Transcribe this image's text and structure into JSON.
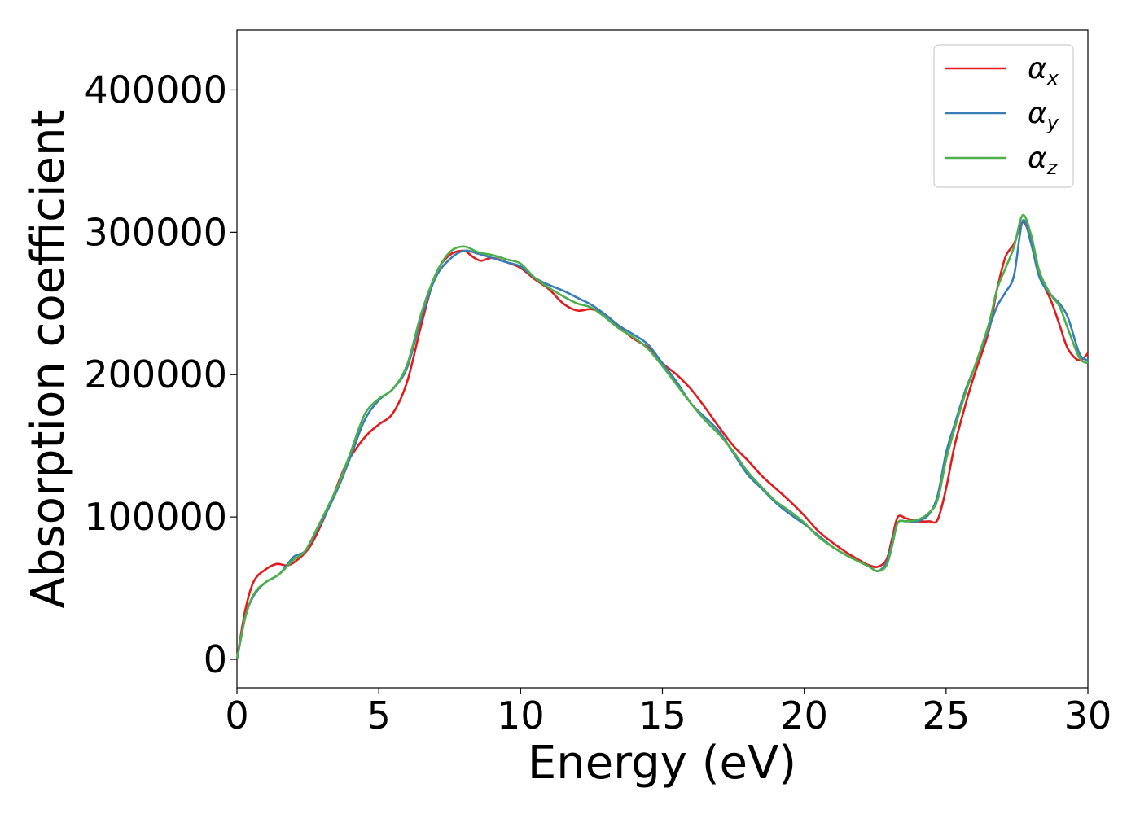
{
  "chart_data": {
    "type": "line",
    "xlabel": "Energy (eV)",
    "ylabel": "Absorption coefficient",
    "xlim": [
      0,
      30
    ],
    "ylim": [
      -20000,
      442000
    ],
    "x_ticks": [
      0,
      5,
      10,
      15,
      20,
      25,
      30
    ],
    "x_tick_labels": [
      "0",
      "5",
      "10",
      "15",
      "20",
      "25",
      "30"
    ],
    "y_ticks": [
      0,
      100000,
      200000,
      300000,
      400000
    ],
    "y_tick_labels": [
      "0",
      "100000",
      "200000",
      "300000",
      "400000"
    ],
    "grid": false,
    "legend_position": "top-right",
    "series": [
      {
        "name": "α",
        "subscript": "x",
        "color": "#e41a1c",
        "points": [
          [
            0,
            0
          ],
          [
            0.3,
            35000
          ],
          [
            0.6,
            55000
          ],
          [
            1,
            63000
          ],
          [
            1.4,
            67000
          ],
          [
            1.8,
            66000
          ],
          [
            2.2,
            71000
          ],
          [
            2.6,
            80000
          ],
          [
            3,
            96000
          ],
          [
            3.4,
            115000
          ],
          [
            3.8,
            135000
          ],
          [
            4.2,
            148000
          ],
          [
            4.6,
            158000
          ],
          [
            5,
            165000
          ],
          [
            5.5,
            173000
          ],
          [
            6,
            195000
          ],
          [
            6.5,
            235000
          ],
          [
            7,
            270000
          ],
          [
            7.5,
            284000
          ],
          [
            8,
            287000
          ],
          [
            8.3,
            283000
          ],
          [
            8.6,
            280000
          ],
          [
            9,
            282000
          ],
          [
            9.5,
            279000
          ],
          [
            10,
            275000
          ],
          [
            10.5,
            267000
          ],
          [
            11,
            260000
          ],
          [
            11.5,
            250000
          ],
          [
            12,
            245000
          ],
          [
            12.5,
            246000
          ],
          [
            13,
            242000
          ],
          [
            13.5,
            233000
          ],
          [
            14,
            225000
          ],
          [
            14.5,
            219000
          ],
          [
            15,
            208000
          ],
          [
            15.5,
            200000
          ],
          [
            16,
            190000
          ],
          [
            16.5,
            177000
          ],
          [
            17,
            163000
          ],
          [
            17.5,
            150000
          ],
          [
            18,
            140000
          ],
          [
            18.5,
            129000
          ],
          [
            19,
            120000
          ],
          [
            19.5,
            111000
          ],
          [
            20,
            101000
          ],
          [
            20.5,
            90000
          ],
          [
            21,
            82000
          ],
          [
            21.5,
            75000
          ],
          [
            22,
            69000
          ],
          [
            22.3,
            66000
          ],
          [
            22.6,
            65000
          ],
          [
            22.9,
            70000
          ],
          [
            23.1,
            85000
          ],
          [
            23.3,
            100000
          ],
          [
            23.6,
            99000
          ],
          [
            24,
            97000
          ],
          [
            24.4,
            97000
          ],
          [
            24.7,
            98000
          ],
          [
            25,
            120000
          ],
          [
            25.3,
            150000
          ],
          [
            25.7,
            180000
          ],
          [
            26,
            200000
          ],
          [
            26.5,
            230000
          ],
          [
            26.8,
            260000
          ],
          [
            27.1,
            283000
          ],
          [
            27.4,
            292000
          ],
          [
            27.7,
            307000
          ],
          [
            28,
            295000
          ],
          [
            28.3,
            270000
          ],
          [
            28.7,
            252000
          ],
          [
            29,
            235000
          ],
          [
            29.3,
            218000
          ],
          [
            29.7,
            210000
          ],
          [
            30,
            215000
          ]
        ]
      },
      {
        "name": "α",
        "subscript": "y",
        "color": "#377eb8",
        "points": [
          [
            0,
            0
          ],
          [
            0.3,
            30000
          ],
          [
            0.6,
            45000
          ],
          [
            1,
            54000
          ],
          [
            1.5,
            60000
          ],
          [
            2,
            72000
          ],
          [
            2.4,
            76000
          ],
          [
            2.8,
            90000
          ],
          [
            3.2,
            105000
          ],
          [
            3.6,
            122000
          ],
          [
            4,
            142000
          ],
          [
            4.5,
            168000
          ],
          [
            5,
            182000
          ],
          [
            5.5,
            190000
          ],
          [
            6,
            205000
          ],
          [
            6.5,
            240000
          ],
          [
            7,
            268000
          ],
          [
            7.5,
            281000
          ],
          [
            8,
            287000
          ],
          [
            8.5,
            285000
          ],
          [
            9,
            282000
          ],
          [
            9.5,
            279000
          ],
          [
            10,
            276000
          ],
          [
            10.5,
            268000
          ],
          [
            11,
            263000
          ],
          [
            11.5,
            259000
          ],
          [
            12,
            254000
          ],
          [
            12.5,
            249000
          ],
          [
            13,
            242000
          ],
          [
            13.5,
            234000
          ],
          [
            14,
            228000
          ],
          [
            14.5,
            221000
          ],
          [
            15,
            208000
          ],
          [
            15.5,
            195000
          ],
          [
            16,
            180000
          ],
          [
            16.5,
            170000
          ],
          [
            17,
            160000
          ],
          [
            17.5,
            145000
          ],
          [
            18,
            130000
          ],
          [
            18.5,
            120000
          ],
          [
            19,
            110000
          ],
          [
            19.5,
            102000
          ],
          [
            20,
            95000
          ],
          [
            20.5,
            87000
          ],
          [
            21,
            79000
          ],
          [
            21.5,
            73000
          ],
          [
            22,
            68000
          ],
          [
            22.3,
            65000
          ],
          [
            22.6,
            62000
          ],
          [
            22.9,
            68000
          ],
          [
            23.1,
            82000
          ],
          [
            23.3,
            96000
          ],
          [
            23.6,
            97000
          ],
          [
            24,
            97000
          ],
          [
            24.4,
            102000
          ],
          [
            24.7,
            115000
          ],
          [
            25,
            145000
          ],
          [
            25.3,
            165000
          ],
          [
            25.7,
            190000
          ],
          [
            26,
            205000
          ],
          [
            26.5,
            232000
          ],
          [
            26.8,
            248000
          ],
          [
            27.1,
            258000
          ],
          [
            27.4,
            270000
          ],
          [
            27.7,
            308000
          ],
          [
            28,
            292000
          ],
          [
            28.3,
            268000
          ],
          [
            28.7,
            256000
          ],
          [
            29,
            250000
          ],
          [
            29.3,
            240000
          ],
          [
            29.7,
            215000
          ],
          [
            30,
            210000
          ]
        ]
      },
      {
        "name": "α",
        "subscript": "z",
        "color": "#4daf4a",
        "points": [
          [
            0,
            0
          ],
          [
            0.3,
            30000
          ],
          [
            0.6,
            46000
          ],
          [
            1,
            54000
          ],
          [
            1.5,
            60000
          ],
          [
            2,
            70000
          ],
          [
            2.4,
            76000
          ],
          [
            2.8,
            91000
          ],
          [
            3.2,
            107000
          ],
          [
            3.6,
            124000
          ],
          [
            4,
            145000
          ],
          [
            4.5,
            172000
          ],
          [
            5,
            183000
          ],
          [
            5.5,
            190000
          ],
          [
            6,
            207000
          ],
          [
            6.5,
            243000
          ],
          [
            7,
            270000
          ],
          [
            7.5,
            286000
          ],
          [
            8,
            290000
          ],
          [
            8.5,
            286000
          ],
          [
            9,
            284000
          ],
          [
            9.5,
            281000
          ],
          [
            10,
            278000
          ],
          [
            10.5,
            268000
          ],
          [
            11,
            261000
          ],
          [
            11.5,
            255000
          ],
          [
            12,
            250000
          ],
          [
            12.5,
            247000
          ],
          [
            13,
            240000
          ],
          [
            13.5,
            232000
          ],
          [
            14,
            226000
          ],
          [
            14.5,
            218000
          ],
          [
            15,
            206000
          ],
          [
            15.5,
            193000
          ],
          [
            16,
            180000
          ],
          [
            16.5,
            168000
          ],
          [
            17,
            158000
          ],
          [
            17.5,
            146000
          ],
          [
            18,
            132000
          ],
          [
            18.5,
            121000
          ],
          [
            19,
            111000
          ],
          [
            19.5,
            104000
          ],
          [
            20,
            96000
          ],
          [
            20.5,
            86000
          ],
          [
            21,
            79000
          ],
          [
            21.5,
            73000
          ],
          [
            22,
            68000
          ],
          [
            22.3,
            65000
          ],
          [
            22.6,
            62000
          ],
          [
            22.9,
            66000
          ],
          [
            23.1,
            80000
          ],
          [
            23.3,
            96000
          ],
          [
            23.6,
            97000
          ],
          [
            24,
            98000
          ],
          [
            24.4,
            103000
          ],
          [
            24.7,
            112000
          ],
          [
            25,
            140000
          ],
          [
            25.3,
            162000
          ],
          [
            25.7,
            188000
          ],
          [
            26,
            205000
          ],
          [
            26.5,
            235000
          ],
          [
            26.8,
            260000
          ],
          [
            27.1,
            275000
          ],
          [
            27.4,
            290000
          ],
          [
            27.7,
            312000
          ],
          [
            28,
            298000
          ],
          [
            28.3,
            272000
          ],
          [
            28.7,
            256000
          ],
          [
            29,
            248000
          ],
          [
            29.3,
            232000
          ],
          [
            29.7,
            212000
          ],
          [
            30,
            208000
          ]
        ]
      }
    ]
  }
}
